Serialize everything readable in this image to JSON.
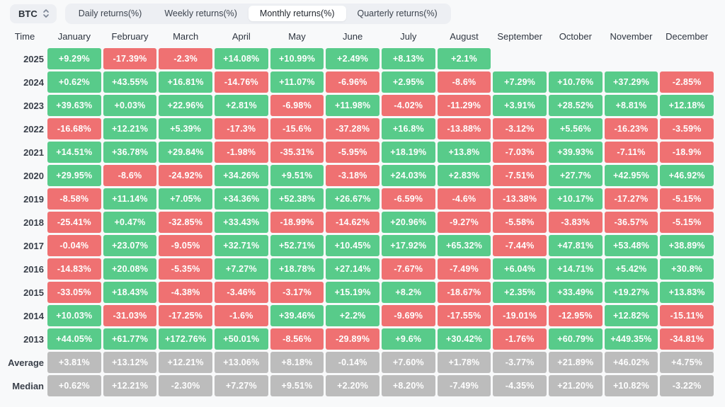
{
  "toolbar": {
    "symbol": "BTC",
    "symbol_icon": "sort-arrows-icon",
    "tabs": [
      {
        "label": "Daily returns(%)",
        "active": false
      },
      {
        "label": "Weekly returns(%)",
        "active": false
      },
      {
        "label": "Monthly returns(%)",
        "active": true
      },
      {
        "label": "Quarterly returns(%)",
        "active": false
      }
    ]
  },
  "colors": {
    "positive": "#58cb8a",
    "negative": "#ef7172",
    "summary": "#bcbcbc",
    "pill_bg": "#edeff3",
    "active_tab_bg": "#ffffff"
  },
  "table": {
    "time_header": "Time",
    "months": [
      "January",
      "February",
      "March",
      "April",
      "May",
      "June",
      "July",
      "August",
      "September",
      "October",
      "November",
      "December"
    ],
    "rows": [
      {
        "label": "2025",
        "type": "year",
        "values": [
          "+9.29%",
          "-17.39%",
          "-2.3%",
          "+14.08%",
          "+10.99%",
          "+2.49%",
          "+8.13%",
          "+2.1%",
          "",
          "",
          "",
          ""
        ]
      },
      {
        "label": "2024",
        "type": "year",
        "values": [
          "+0.62%",
          "+43.55%",
          "+16.81%",
          "-14.76%",
          "+11.07%",
          "-6.96%",
          "+2.95%",
          "-8.6%",
          "+7.29%",
          "+10.76%",
          "+37.29%",
          "-2.85%"
        ]
      },
      {
        "label": "2023",
        "type": "year",
        "values": [
          "+39.63%",
          "+0.03%",
          "+22.96%",
          "+2.81%",
          "-6.98%",
          "+11.98%",
          "-4.02%",
          "-11.29%",
          "+3.91%",
          "+28.52%",
          "+8.81%",
          "+12.18%"
        ]
      },
      {
        "label": "2022",
        "type": "year",
        "values": [
          "-16.68%",
          "+12.21%",
          "+5.39%",
          "-17.3%",
          "-15.6%",
          "-37.28%",
          "+16.8%",
          "-13.88%",
          "-3.12%",
          "+5.56%",
          "-16.23%",
          "-3.59%"
        ]
      },
      {
        "label": "2021",
        "type": "year",
        "values": [
          "+14.51%",
          "+36.78%",
          "+29.84%",
          "-1.98%",
          "-35.31%",
          "-5.95%",
          "+18.19%",
          "+13.8%",
          "-7.03%",
          "+39.93%",
          "-7.11%",
          "-18.9%"
        ]
      },
      {
        "label": "2020",
        "type": "year",
        "values": [
          "+29.95%",
          "-8.6%",
          "-24.92%",
          "+34.26%",
          "+9.51%",
          "-3.18%",
          "+24.03%",
          "+2.83%",
          "-7.51%",
          "+27.7%",
          "+42.95%",
          "+46.92%"
        ]
      },
      {
        "label": "2019",
        "type": "year",
        "values": [
          "-8.58%",
          "+11.14%",
          "+7.05%",
          "+34.36%",
          "+52.38%",
          "+26.67%",
          "-6.59%",
          "-4.6%",
          "-13.38%",
          "+10.17%",
          "-17.27%",
          "-5.15%"
        ]
      },
      {
        "label": "2018",
        "type": "year",
        "values": [
          "-25.41%",
          "+0.47%",
          "-32.85%",
          "+33.43%",
          "-18.99%",
          "-14.62%",
          "+20.96%",
          "-9.27%",
          "-5.58%",
          "-3.83%",
          "-36.57%",
          "-5.15%"
        ]
      },
      {
        "label": "2017",
        "type": "year",
        "values": [
          "-0.04%",
          "+23.07%",
          "-9.05%",
          "+32.71%",
          "+52.71%",
          "+10.45%",
          "+17.92%",
          "+65.32%",
          "-7.44%",
          "+47.81%",
          "+53.48%",
          "+38.89%"
        ]
      },
      {
        "label": "2016",
        "type": "year",
        "values": [
          "-14.83%",
          "+20.08%",
          "-5.35%",
          "+7.27%",
          "+18.78%",
          "+27.14%",
          "-7.67%",
          "-7.49%",
          "+6.04%",
          "+14.71%",
          "+5.42%",
          "+30.8%"
        ]
      },
      {
        "label": "2015",
        "type": "year",
        "values": [
          "-33.05%",
          "+18.43%",
          "-4.38%",
          "-3.46%",
          "-3.17%",
          "+15.19%",
          "+8.2%",
          "-18.67%",
          "+2.35%",
          "+33.49%",
          "+19.27%",
          "+13.83%"
        ]
      },
      {
        "label": "2014",
        "type": "year",
        "values": [
          "+10.03%",
          "-31.03%",
          "-17.25%",
          "-1.6%",
          "+39.46%",
          "+2.2%",
          "-9.69%",
          "-17.55%",
          "-19.01%",
          "-12.95%",
          "+12.82%",
          "-15.11%"
        ]
      },
      {
        "label": "2013",
        "type": "year",
        "values": [
          "+44.05%",
          "+61.77%",
          "+172.76%",
          "+50.01%",
          "-8.56%",
          "-29.89%",
          "+9.6%",
          "+30.42%",
          "-1.76%",
          "+60.79%",
          "+449.35%",
          "-34.81%"
        ]
      },
      {
        "label": "Average",
        "type": "summary",
        "values": [
          "+3.81%",
          "+13.12%",
          "+12.21%",
          "+13.06%",
          "+8.18%",
          "-0.14%",
          "+7.60%",
          "+1.78%",
          "-3.77%",
          "+21.89%",
          "+46.02%",
          "+4.75%"
        ]
      },
      {
        "label": "Median",
        "type": "summary",
        "values": [
          "+0.62%",
          "+12.21%",
          "-2.30%",
          "+7.27%",
          "+9.51%",
          "+2.20%",
          "+8.20%",
          "-7.49%",
          "-4.35%",
          "+21.20%",
          "+10.82%",
          "-3.22%"
        ]
      }
    ]
  }
}
